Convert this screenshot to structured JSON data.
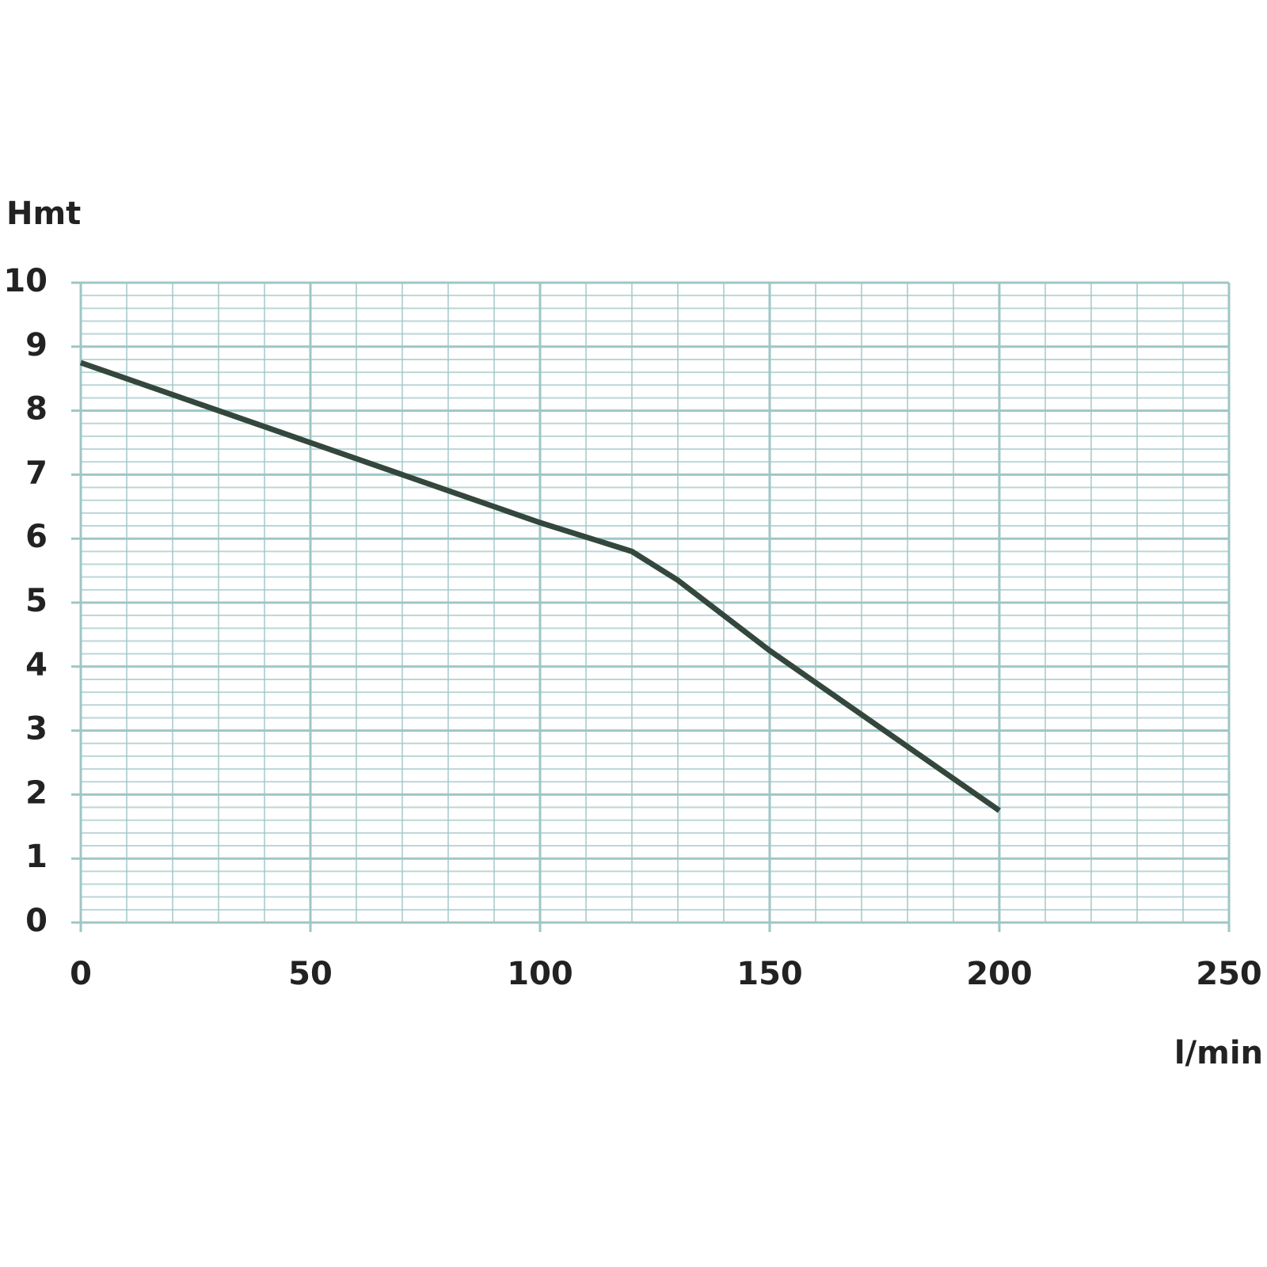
{
  "chart_data": {
    "type": "line",
    "x_label": "l/min",
    "y_label": "Hmt",
    "series": [
      {
        "color": "#34473c",
        "x": [
          0,
          50,
          100,
          120,
          130,
          150,
          175,
          200
        ],
        "values": [
          8.75,
          7.5,
          6.25,
          5.8,
          5.35,
          4.25,
          3.0,
          1.75
        ]
      }
    ],
    "xlim": [
      0,
      250
    ],
    "xticks": [
      0,
      50,
      100,
      150,
      200,
      250
    ],
    "ylim": [
      0,
      10
    ],
    "yticks": [
      0,
      1,
      2,
      3,
      4,
      5,
      6,
      7,
      8,
      9,
      10
    ],
    "grid": true,
    "minor_grid": true,
    "grid_color": "#9fc6c6"
  }
}
